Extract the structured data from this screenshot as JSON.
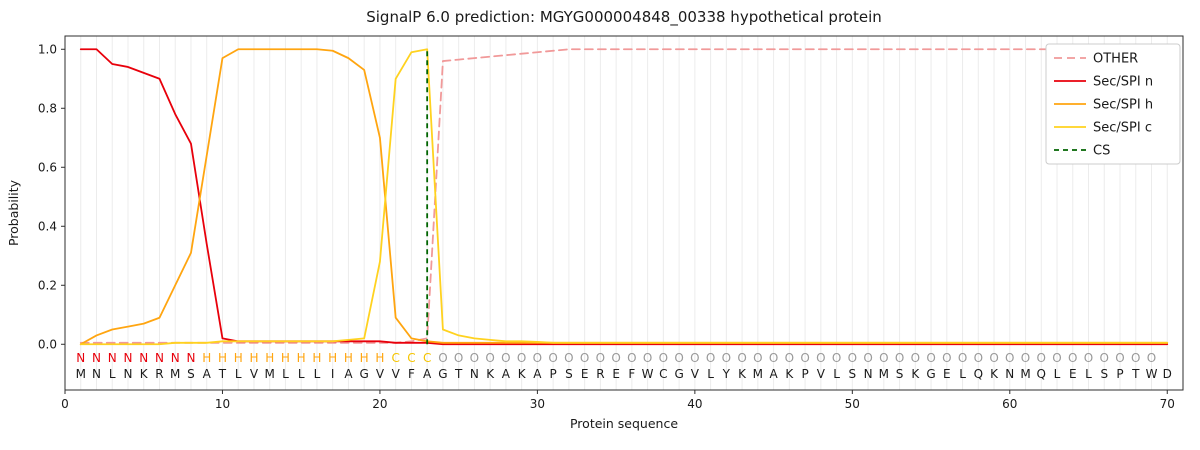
{
  "chart_data": {
    "type": "line",
    "title": "SignalP 6.0 prediction: MGYG000004848_00338 hypothetical protein",
    "xlabel": "Protein sequence",
    "ylabel": "Probability",
    "xlim": [
      0,
      71
    ],
    "ylim": [
      -0.155,
      1.045
    ],
    "xticks": [
      0,
      10,
      20,
      30,
      40,
      50,
      60,
      70
    ],
    "yticks": [
      0.0,
      0.2,
      0.4,
      0.6,
      0.8,
      1.0
    ],
    "grid": "vertical-per-residue",
    "grid_color": "#ececec",
    "legend_position": "upper right",
    "cs_position": 23,
    "cs": {
      "name": "CS",
      "color": "#006400",
      "dash": "5,4"
    },
    "series": [
      {
        "name": "OTHER",
        "color": "#f19999",
        "dash": "8,5",
        "values": [
          0.005,
          0.005,
          0.005,
          0.005,
          0.005,
          0.005,
          0.005,
          0.005,
          0.005,
          0.005,
          0.005,
          0.005,
          0.005,
          0.005,
          0.005,
          0.005,
          0.005,
          0.005,
          0.005,
          0.005,
          0.005,
          0.01,
          0.02,
          0.96,
          0.965,
          0.97,
          0.975,
          0.98,
          0.985,
          0.99,
          0.995,
          1.0,
          1.0,
          1.0,
          1.0,
          1.0,
          1.0,
          1.0,
          1.0,
          1.0,
          1.0,
          1.0,
          1.0,
          1.0,
          1.0,
          1.0,
          1.0,
          1.0,
          1.0,
          1.0,
          1.0,
          1.0,
          1.0,
          1.0,
          1.0,
          1.0,
          1.0,
          1.0,
          1.0,
          1.0,
          1.0,
          1.0,
          1.0,
          1.0,
          1.0,
          1.0,
          1.0,
          1.0,
          1.0,
          1.0
        ]
      },
      {
        "name": "Sec/SPI n",
        "color": "#e8000b",
        "dash": null,
        "values": [
          1.0,
          1.0,
          0.95,
          0.94,
          0.92,
          0.9,
          0.78,
          0.68,
          0.34,
          0.02,
          0.01,
          0.01,
          0.01,
          0.01,
          0.01,
          0.01,
          0.01,
          0.01,
          0.01,
          0.01,
          0.005,
          0.005,
          0.005,
          0.0,
          0.0,
          0.0,
          0.0,
          0.0,
          0.0,
          0.0,
          0.0,
          0.0,
          0.0,
          0.0,
          0.0,
          0.0,
          0.0,
          0.0,
          0.0,
          0.0,
          0.0,
          0.0,
          0.0,
          0.0,
          0.0,
          0.0,
          0.0,
          0.0,
          0.0,
          0.0,
          0.0,
          0.0,
          0.0,
          0.0,
          0.0,
          0.0,
          0.0,
          0.0,
          0.0,
          0.0,
          0.0,
          0.0,
          0.0,
          0.0,
          0.0,
          0.0,
          0.0,
          0.0,
          0.0,
          0.0
        ]
      },
      {
        "name": "Sec/SPI h",
        "color": "#ffa510",
        "dash": null,
        "values": [
          0.0,
          0.03,
          0.05,
          0.06,
          0.07,
          0.09,
          0.2,
          0.31,
          0.64,
          0.97,
          1.0,
          1.0,
          1.0,
          1.0,
          1.0,
          1.0,
          0.995,
          0.97,
          0.93,
          0.7,
          0.09,
          0.02,
          0.01,
          0.005,
          0.005,
          0.005,
          0.005,
          0.005,
          0.005,
          0.005,
          0.005,
          0.005,
          0.005,
          0.005,
          0.005,
          0.005,
          0.005,
          0.005,
          0.005,
          0.005,
          0.005,
          0.005,
          0.005,
          0.005,
          0.005,
          0.005,
          0.005,
          0.005,
          0.005,
          0.005,
          0.005,
          0.005,
          0.005,
          0.005,
          0.005,
          0.005,
          0.005,
          0.005,
          0.005,
          0.005,
          0.005,
          0.005,
          0.005,
          0.005,
          0.005,
          0.005,
          0.005,
          0.005,
          0.005,
          0.005
        ]
      },
      {
        "name": "Sec/SPI c",
        "color": "#ffd21f",
        "dash": null,
        "values": [
          0.0,
          0.0,
          0.0,
          0.0,
          0.0,
          0.0,
          0.005,
          0.005,
          0.005,
          0.01,
          0.01,
          0.01,
          0.01,
          0.01,
          0.01,
          0.01,
          0.01,
          0.015,
          0.02,
          0.28,
          0.9,
          0.99,
          1.0,
          0.05,
          0.03,
          0.02,
          0.015,
          0.01,
          0.01,
          0.008,
          0.005,
          0.005,
          0.005,
          0.005,
          0.005,
          0.005,
          0.005,
          0.005,
          0.005,
          0.005,
          0.005,
          0.005,
          0.005,
          0.005,
          0.005,
          0.005,
          0.005,
          0.005,
          0.005,
          0.005,
          0.005,
          0.005,
          0.005,
          0.005,
          0.005,
          0.005,
          0.005,
          0.005,
          0.005,
          0.005,
          0.005,
          0.005,
          0.005,
          0.005,
          0.005,
          0.005,
          0.005,
          0.005,
          0.005,
          0.005
        ]
      }
    ],
    "sequence": "MNLNKRMSATLVMLLLIAGVVFAGTNKAKAPSEREFWCGVLYKMAKPVLSNMSKGELQKNMQLELSPTWD",
    "regions": "NNNNNNNNHHHHHHHHHHHHCCCOOOOOOOOOOOOOOOOOOOOOOOOOOOOOOOOOOOOOOOOOOOOOO",
    "region_colors": {
      "N": "#e8000b",
      "H": "#ffa510",
      "C": "#f5c400",
      "O": "#9a9a9a"
    },
    "sequence_color": "#1a1a1a"
  }
}
